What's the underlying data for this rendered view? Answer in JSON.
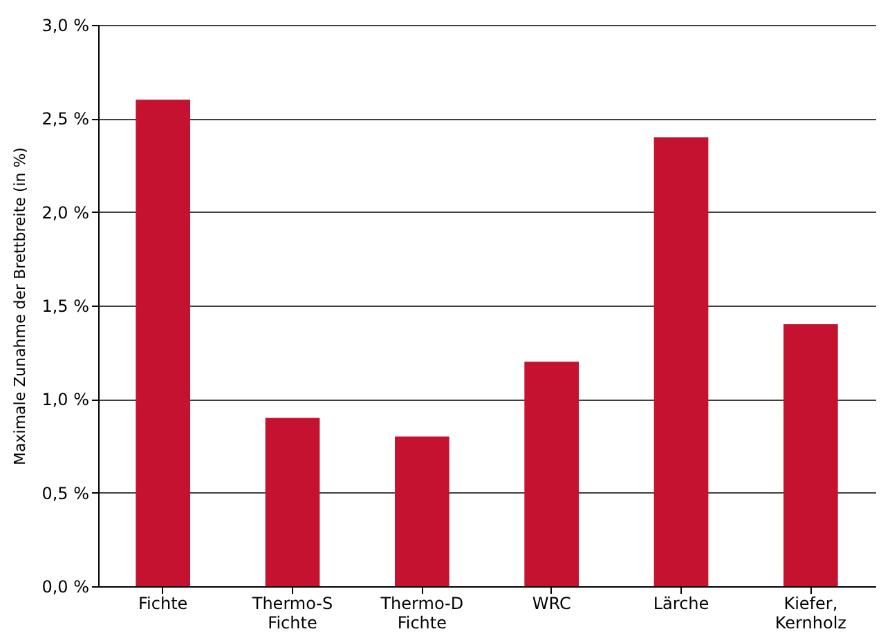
{
  "chart_data": {
    "type": "bar",
    "ylabel": "Maximale Zunahme der Brettbreite (in %)",
    "categories": [
      "Fichte",
      "Thermo-S Fichte",
      "Thermo-D Fichte",
      "WRC",
      "Lärche",
      "Kiefer, Kernholz"
    ],
    "values": [
      2.6,
      0.9,
      0.8,
      1.2,
      2.4,
      1.4
    ],
    "color": "#c41230",
    "ylim": [
      0,
      3
    ],
    "yticks": [
      {
        "value": 0,
        "label": "0,0 %"
      },
      {
        "value": 0.5,
        "label": "0,5 %"
      },
      {
        "value": 1,
        "label": "1,0 %"
      },
      {
        "value": 1.5,
        "label": "1,5 %"
      },
      {
        "value": 2,
        "label": "2,0 %"
      },
      {
        "value": 2.5,
        "label": "2,5 %"
      },
      {
        "value": 3,
        "label": "3,0 %"
      }
    ],
    "grid": "y"
  }
}
